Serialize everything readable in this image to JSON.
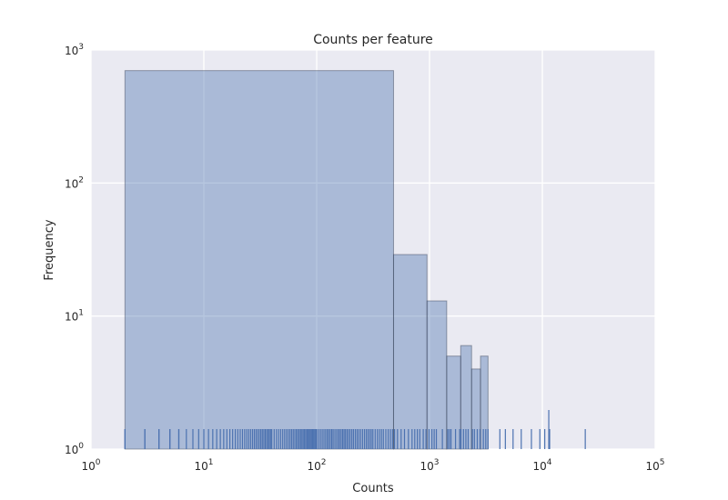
{
  "chart_data": {
    "type": "bar",
    "title": "Counts per feature",
    "xlabel": "Counts",
    "ylabel": "Frequency",
    "x_scale": "log",
    "y_scale": "log",
    "xlim": [
      1,
      100000
    ],
    "ylim": [
      1,
      1000
    ],
    "grid": true,
    "x_ticks": [
      {
        "value": 1,
        "base": "10",
        "exp": "0"
      },
      {
        "value": 10,
        "base": "10",
        "exp": "1"
      },
      {
        "value": 100,
        "base": "10",
        "exp": "2"
      },
      {
        "value": 1000,
        "base": "10",
        "exp": "3"
      },
      {
        "value": 10000,
        "base": "10",
        "exp": "4"
      },
      {
        "value": 100000,
        "base": "10",
        "exp": "5"
      }
    ],
    "y_ticks": [
      {
        "value": 1,
        "base": "10",
        "exp": "0"
      },
      {
        "value": 10,
        "base": "10",
        "exp": "1"
      },
      {
        "value": 100,
        "base": "10",
        "exp": "2"
      },
      {
        "value": 1000,
        "base": "10",
        "exp": "3"
      }
    ],
    "bins": [
      {
        "x0": 2,
        "x1": 480,
        "count": 700
      },
      {
        "x0": 480,
        "x1": 950,
        "count": 29
      },
      {
        "x0": 950,
        "x1": 1420,
        "count": 13
      },
      {
        "x0": 1420,
        "x1": 1890,
        "count": 5
      },
      {
        "x0": 1890,
        "x1": 2360,
        "count": 6
      },
      {
        "x0": 2360,
        "x1": 2830,
        "count": 4
      },
      {
        "x0": 2830,
        "x1": 3300,
        "count": 5
      }
    ],
    "rug_values": [
      2,
      2,
      3,
      3,
      4,
      4,
      5,
      5,
      6,
      6,
      7,
      8,
      9,
      10,
      11,
      12,
      13,
      14,
      15,
      16,
      17,
      18,
      19,
      20,
      21,
      22,
      23,
      24,
      25,
      26,
      27,
      28,
      29,
      30,
      31,
      32,
      33,
      34,
      35,
      36,
      37,
      38,
      39,
      40,
      42,
      44,
      46,
      48,
      50,
      52,
      54,
      56,
      58,
      60,
      62,
      64,
      66,
      68,
      70,
      72,
      74,
      76,
      78,
      80,
      82,
      84,
      86,
      88,
      90,
      92,
      94,
      96,
      98,
      100,
      104,
      108,
      112,
      116,
      120,
      124,
      128,
      132,
      136,
      140,
      145,
      150,
      155,
      160,
      165,
      170,
      175,
      180,
      186,
      192,
      198,
      205,
      212,
      220,
      228,
      236,
      245,
      255,
      265,
      275,
      285,
      295,
      305,
      315,
      330,
      345,
      360,
      375,
      390,
      410,
      430,
      450,
      470,
      490,
      520,
      560,
      600,
      650,
      700,
      740,
      780,
      820,
      880,
      930,
      990,
      1050,
      1100,
      1150,
      1300,
      1450,
      1500,
      1550,
      1700,
      1850,
      1900,
      2000,
      2100,
      2200,
      2400,
      2500,
      2650,
      2800,
      3000,
      3150,
      3300,
      4200,
      4700,
      5500,
      6500,
      8000,
      9500,
      10500,
      11500,
      11600,
      24000
    ],
    "rug_tall_values": [
      11400
    ]
  }
}
